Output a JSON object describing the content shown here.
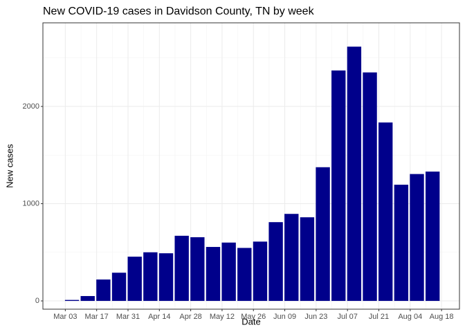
{
  "chart_data": {
    "type": "bar",
    "title": "New COVID-19 cases in Davidson County, TN by week",
    "x_label": "Date",
    "y_label": "New cases",
    "x": [
      "Mar 06",
      "Mar 13",
      "Mar 20",
      "Mar 27",
      "Apr 03",
      "Apr 10",
      "Apr 17",
      "Apr 24",
      "May 01",
      "May 08",
      "May 15",
      "May 22",
      "May 29",
      "Jun 05",
      "Jun 12",
      "Jun 19",
      "Jun 26",
      "Jul 03",
      "Jul 10",
      "Jul 17",
      "Jul 24",
      "Jul 31",
      "Aug 07",
      "Aug 14"
    ],
    "values": [
      10,
      50,
      220,
      290,
      455,
      500,
      490,
      670,
      655,
      555,
      600,
      545,
      610,
      810,
      895,
      860,
      1375,
      2370,
      2615,
      2350,
      1835,
      1195,
      1305,
      1330
    ],
    "color": "#00008b",
    "xlim": [
      "Feb 22",
      "Aug 26"
    ],
    "xticks": [
      "Mar 03",
      "Mar 17",
      "Mar 31",
      "Apr 14",
      "Apr 28",
      "May 12",
      "May 26",
      "Jun 09",
      "Jun 23",
      "Jul 07",
      "Jul 21",
      "Aug 04",
      "Aug 18"
    ],
    "ylim": [
      -85,
      2860
    ],
    "yticks": [
      0,
      1000,
      2000
    ],
    "grid": true
  }
}
